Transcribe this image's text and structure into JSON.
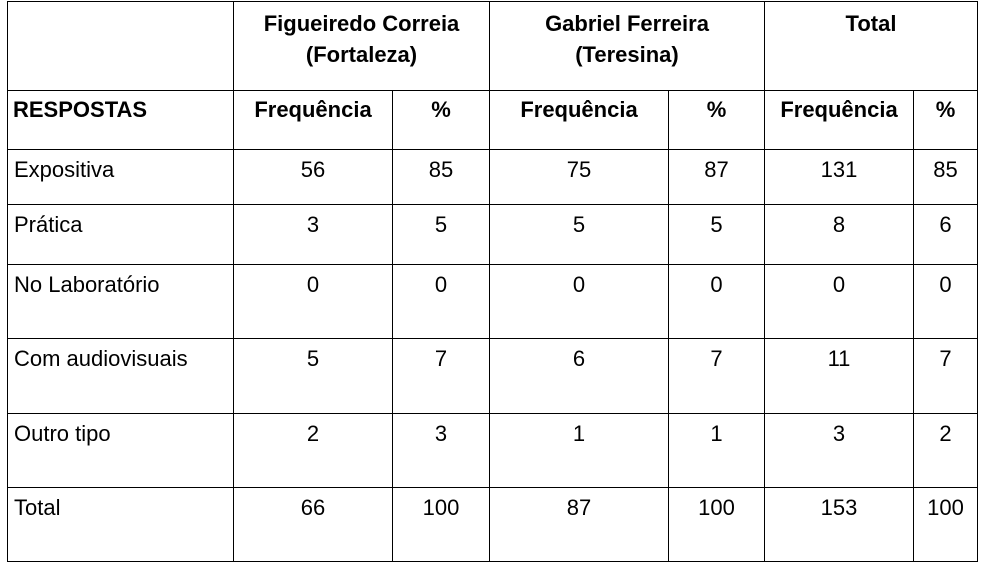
{
  "groups": [
    {
      "line1": "Figueiredo Correia",
      "line2": "(Fortaleza)"
    },
    {
      "line1": "Gabriel Ferreira",
      "line2": "(Teresina)"
    },
    {
      "line1": "Total",
      "line2": ""
    }
  ],
  "subheader": {
    "first": "RESPOSTAS",
    "freq": "Frequência",
    "pct": "%"
  },
  "rows": [
    {
      "label": "Expositiva",
      "values": [
        "56",
        "85",
        "75",
        "87",
        "131",
        "85"
      ]
    },
    {
      "label": "Prática",
      "values": [
        "3",
        "5",
        "5",
        "5",
        "8",
        "6"
      ]
    },
    {
      "label": "No Laboratório",
      "values": [
        "0",
        "0",
        "0",
        "0",
        "0",
        "0"
      ]
    },
    {
      "label": "Com audiovisuais",
      "values": [
        "5",
        "7",
        "6",
        "7",
        "11",
        "7"
      ]
    },
    {
      "label": "Outro tipo",
      "values": [
        "2",
        "3",
        "1",
        "1",
        "3",
        "2"
      ]
    },
    {
      "label": "Total",
      "values": [
        "66",
        "100",
        "87",
        "100",
        "153",
        "100"
      ]
    }
  ]
}
